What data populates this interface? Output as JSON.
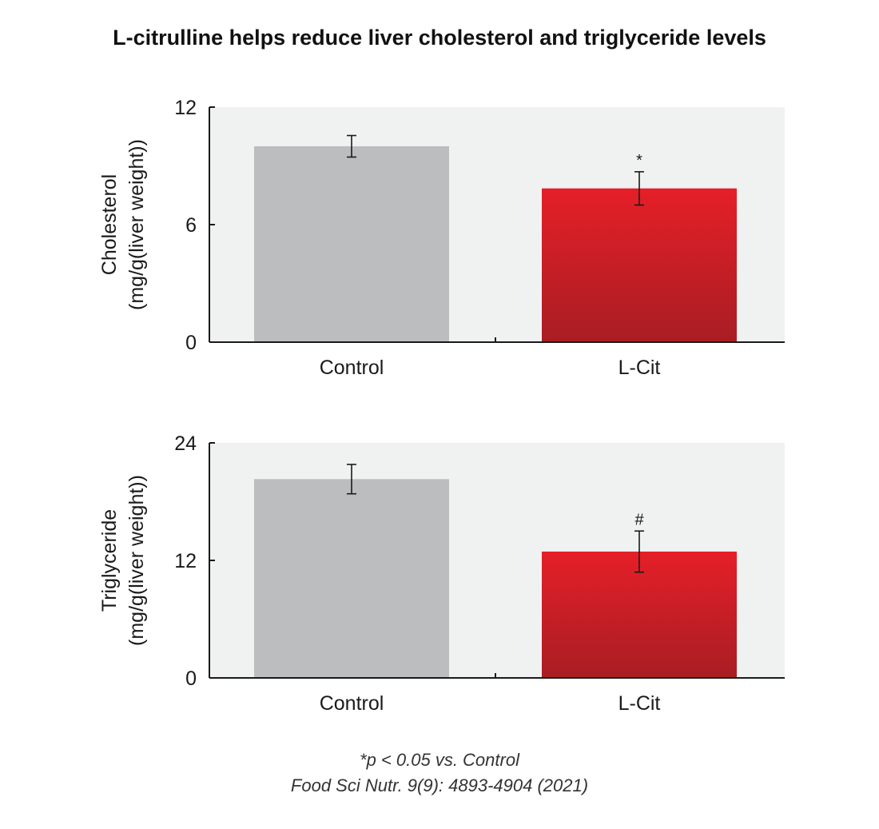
{
  "title": "L-citrulline helps reduce liver cholesterol and triglyceride levels",
  "footnote": {
    "line1": "*p < 0.05 vs. Control",
    "line2": "Food Sci Nutr. 9(9): 4893-4904 (2021)"
  },
  "colors": {
    "panel_bg": "#f0f1f1",
    "control_bar": "#bcbdbf",
    "lcit_bar_top": "#e51f28",
    "lcit_bar_bottom": "#a81e23",
    "axis": "#1a1a1a"
  },
  "chart_data": [
    {
      "type": "bar",
      "categories": [
        "Control",
        "L-Cit"
      ],
      "values": [
        10.0,
        7.85
      ],
      "errors": [
        0.55,
        0.85
      ],
      "significance": [
        "",
        "*"
      ],
      "ylabel_line1": "Cholesterol",
      "ylabel_line2": "(mg/g(liver weight))",
      "ylim": [
        0,
        12
      ],
      "yticks": [
        0,
        6,
        12
      ],
      "grid": false
    },
    {
      "type": "bar",
      "categories": [
        "Control",
        "L-Cit"
      ],
      "values": [
        20.3,
        12.9
      ],
      "errors": [
        1.5,
        2.1
      ],
      "significance": [
        "",
        "#"
      ],
      "ylabel_line1": "Triglyceride",
      "ylabel_line2": "(mg/g(liver weight))",
      "ylim": [
        0,
        24
      ],
      "yticks": [
        0,
        12,
        24
      ],
      "grid": false
    }
  ]
}
